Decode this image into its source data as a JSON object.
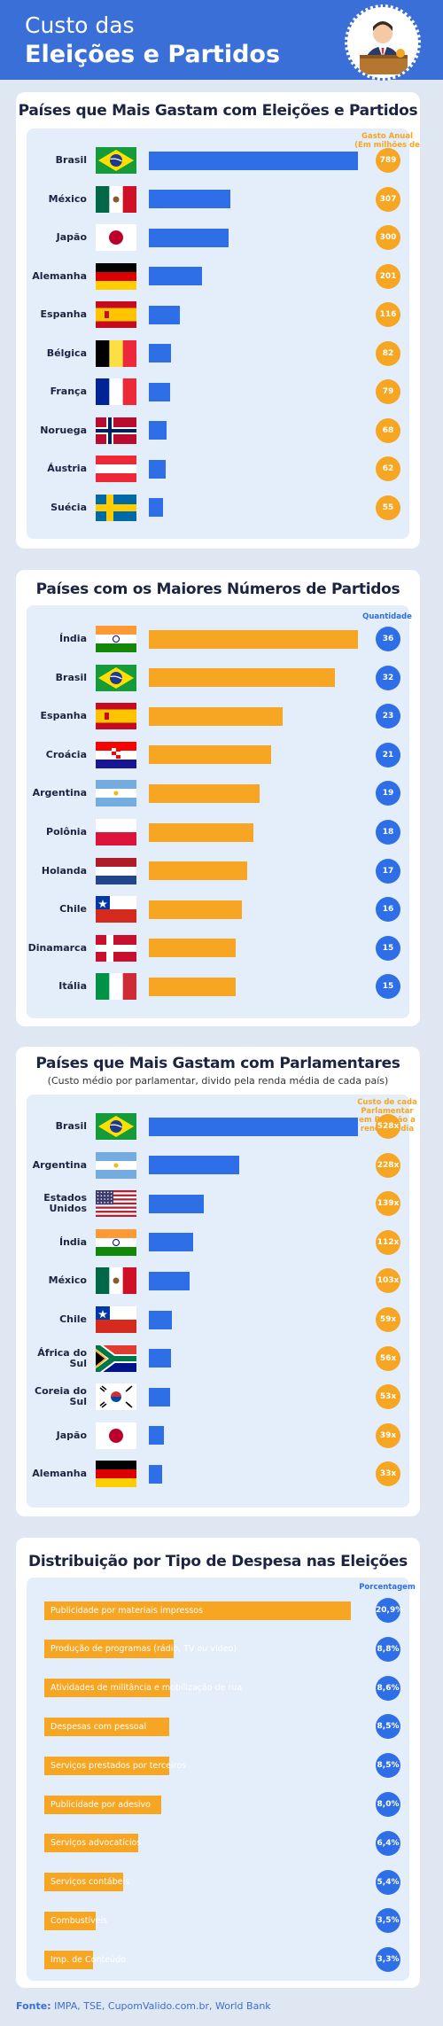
{
  "header": {
    "title_line1": "Custo das",
    "title_line2": "Eleições e Partidos"
  },
  "colors": {
    "blue": "#2e6ee6",
    "orange": "#f6a623",
    "header": "#3b6fd8",
    "panel_inner": "#e4edfa"
  },
  "source": {
    "label": "Fonte:",
    "text": " IMPA, TSE, CupomValido.com.br, World Bank"
  },
  "chart_data": [
    {
      "type": "bar",
      "title": "Países que Mais Gastam com Eleições e Partidos",
      "legend": "Gasto Anual (Em milhões de U$)",
      "categories": [
        "Brasil",
        "México",
        "Japão",
        "Alemanha",
        "Espanha",
        "Bélgica",
        "França",
        "Noruega",
        "Áustria",
        "Suécia"
      ],
      "values": [
        789,
        307,
        300,
        201,
        116,
        82,
        79,
        68,
        62,
        55
      ],
      "value_labels": [
        "789",
        "307",
        "300",
        "201",
        "116",
        "82",
        "79",
        "68",
        "62",
        "55"
      ],
      "flags": [
        "brazil",
        "mexico",
        "japan",
        "germany",
        "spain",
        "belgium",
        "france",
        "norway",
        "austria",
        "sweden"
      ],
      "bar_color": "#2e6ee6",
      "circle_color": "#f6a623"
    },
    {
      "type": "bar",
      "title": "Países com os Maiores Números de Partidos",
      "legend": "Quantidade",
      "categories": [
        "Índia",
        "Brasil",
        "Espanha",
        "Croácia",
        "Argentina",
        "Polônia",
        "Holanda",
        "Chile",
        "Dinamarca",
        "Itália"
      ],
      "values": [
        36,
        32,
        23,
        21,
        19,
        18,
        17,
        16,
        15,
        15
      ],
      "value_labels": [
        "36",
        "32",
        "23",
        "21",
        "19",
        "18",
        "17",
        "16",
        "15",
        "15"
      ],
      "flags": [
        "india",
        "brazil",
        "spain",
        "croatia",
        "argentina",
        "poland",
        "netherlands",
        "chile",
        "denmark",
        "italy"
      ],
      "bar_color": "#f6a623",
      "circle_color": "#2e6ee6"
    },
    {
      "type": "bar",
      "title": "Países que Mais Gastam com Parlamentares",
      "subtitle": "(Custo médio por parlamentar, divido pela renda média de cada país)",
      "legend": "Custo de cada Parlamentar em Relação a renda média",
      "categories": [
        "Brasil",
        "Argentina",
        "Estados Unidos",
        "Índia",
        "México",
        "Chile",
        "África do Sul",
        "Coreia do Sul",
        "Japão",
        "Alemanha"
      ],
      "label_lines": [
        [
          "Brasil"
        ],
        [
          "Argentina"
        ],
        [
          "Estados",
          "Unidos"
        ],
        [
          "Índia"
        ],
        [
          "México"
        ],
        [
          "Chile"
        ],
        [
          "África do",
          "Sul"
        ],
        [
          "Coreia do",
          "Sul"
        ],
        [
          "Japão"
        ],
        [
          "Alemanha"
        ]
      ],
      "values": [
        528,
        228,
        139,
        112,
        103,
        59,
        56,
        53,
        39,
        33
      ],
      "value_labels": [
        "528x",
        "228x",
        "139x",
        "112x",
        "103x",
        "59x",
        "56x",
        "53x",
        "39x",
        "33x"
      ],
      "flags": [
        "brazil",
        "argentina",
        "usa",
        "india",
        "mexico",
        "chile",
        "southafrica",
        "korea",
        "japan",
        "germany"
      ],
      "bar_color": "#2e6ee6",
      "circle_color": "#f6a623"
    },
    {
      "type": "bar",
      "title": "Distribuição por Tipo de Despesa nas Eleições",
      "legend": "Porcentagem",
      "categories": [
        "Publicidade por materiais impressos",
        "Produção de programas (rádio, TV ou vídeo)",
        "Atividades de militância e mobilização de rua",
        "Despesas com pessoal",
        "Serviços prestados por terceiros",
        "Publicidade por adesivo",
        "Serviços advocatícios",
        "Serviços contábeis",
        "Combustíveis",
        "Imp. de Conteúdo"
      ],
      "values": [
        20.9,
        8.8,
        8.6,
        8.5,
        8.5,
        8.0,
        6.4,
        5.4,
        3.5,
        3.3
      ],
      "value_labels": [
        "20,9%",
        "8,8%",
        "8,6%",
        "8,5%",
        "8,5%",
        "8,0%",
        "6,4%",
        "5,4%",
        "3,5%",
        "3,3%"
      ],
      "bar_color": "#f6a623",
      "circle_color": "#2e6ee6"
    }
  ]
}
